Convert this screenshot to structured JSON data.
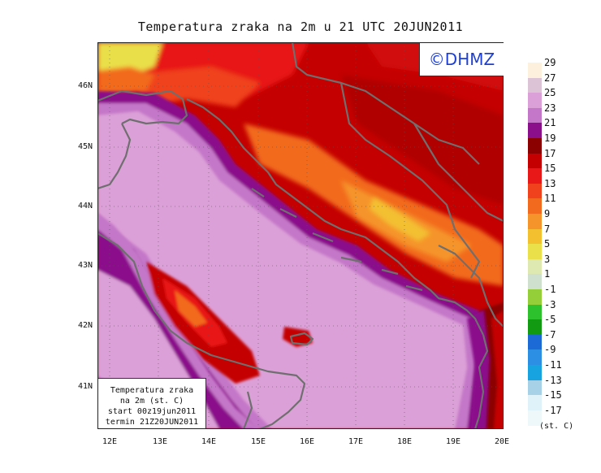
{
  "title": "Temperatura zraka na 2m u 21 UTC 20JUN2011",
  "credit": "©DHMZ",
  "info_box": {
    "line1": "Temperatura zraka",
    "line2": "na 2m (st. C)",
    "line3": "start 00z19jun2011",
    "line4": "termin 21Z20JUN2011"
  },
  "axes": {
    "lat_labels": [
      "46N",
      "45N",
      "44N",
      "43N",
      "42N",
      "41N"
    ],
    "lon_labels": [
      "12E",
      "13E",
      "14E",
      "15E",
      "16E",
      "17E",
      "18E",
      "19E",
      "20E"
    ]
  },
  "legend": {
    "unit": "(st. C)",
    "labels": [
      "29",
      "27",
      "25",
      "23",
      "21",
      "19",
      "17",
      "15",
      "13",
      "11",
      "9",
      "7",
      "5",
      "3",
      "1",
      "-1",
      "-3",
      "-5",
      "-7",
      "-9",
      "-11",
      "-13",
      "-15",
      "-17"
    ],
    "colors": [
      "#fdf0dd",
      "#ddc3d6",
      "#dca0d8",
      "#c477c8",
      "#8b0f8b",
      "#8b0000",
      "#c40000",
      "#e81818",
      "#f0421c",
      "#f26a1e",
      "#f5942a",
      "#f3c030",
      "#e9e04a",
      "#dde9b0",
      "#cfe0cf",
      "#94cf3a",
      "#2ec12e",
      "#139a13",
      "#1c6ad6",
      "#2d8fe4",
      "#17a2e0",
      "#a6d1e6",
      "#dff1f9",
      "#eef8fb"
    ]
  }
}
